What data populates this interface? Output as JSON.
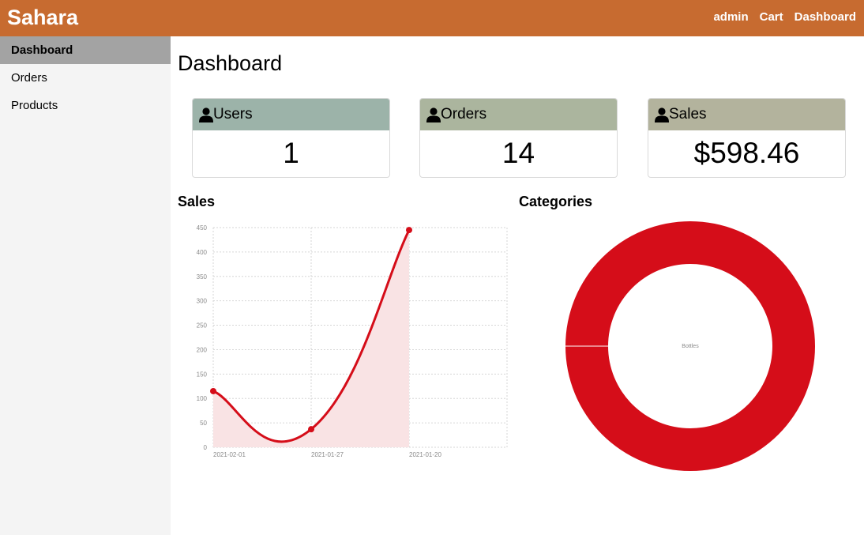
{
  "brand": "Sahara",
  "topnav": [
    {
      "label": "admin"
    },
    {
      "label": "Cart"
    },
    {
      "label": "Dashboard"
    }
  ],
  "sidebar": {
    "items": [
      {
        "label": "Dashboard",
        "active": true
      },
      {
        "label": "Orders",
        "active": false
      },
      {
        "label": "Products",
        "active": false
      }
    ]
  },
  "page_title": "Dashboard",
  "cards": [
    {
      "label": "Users",
      "value": "1",
      "color": "#9cb3a9",
      "icon": "user-icon"
    },
    {
      "label": "Orders",
      "value": "14",
      "color": "#abb59e",
      "icon": "user-icon"
    },
    {
      "label": "Sales",
      "value": "$598.46",
      "color": "#b3b39d",
      "icon": "user-icon"
    }
  ],
  "sales_title": "Sales",
  "categories_title": "Categories",
  "colors": {
    "brand": "#c76b30",
    "chart_red": "#d50d19",
    "chart_fill": "#f9e3e4"
  },
  "chart_data": [
    {
      "type": "line",
      "x": [
        "2021-02-01",
        "2021-01-27",
        "2021-01-20"
      ],
      "values": [
        115,
        37,
        445
      ],
      "yticks": [
        0,
        50,
        100,
        150,
        200,
        250,
        300,
        350,
        400,
        450
      ],
      "ylim": [
        0,
        450
      ],
      "area_fill": true,
      "grid": true
    },
    {
      "type": "pie",
      "style": "doughnut",
      "labels": [
        "Bottles"
      ],
      "values": [
        1
      ]
    }
  ]
}
